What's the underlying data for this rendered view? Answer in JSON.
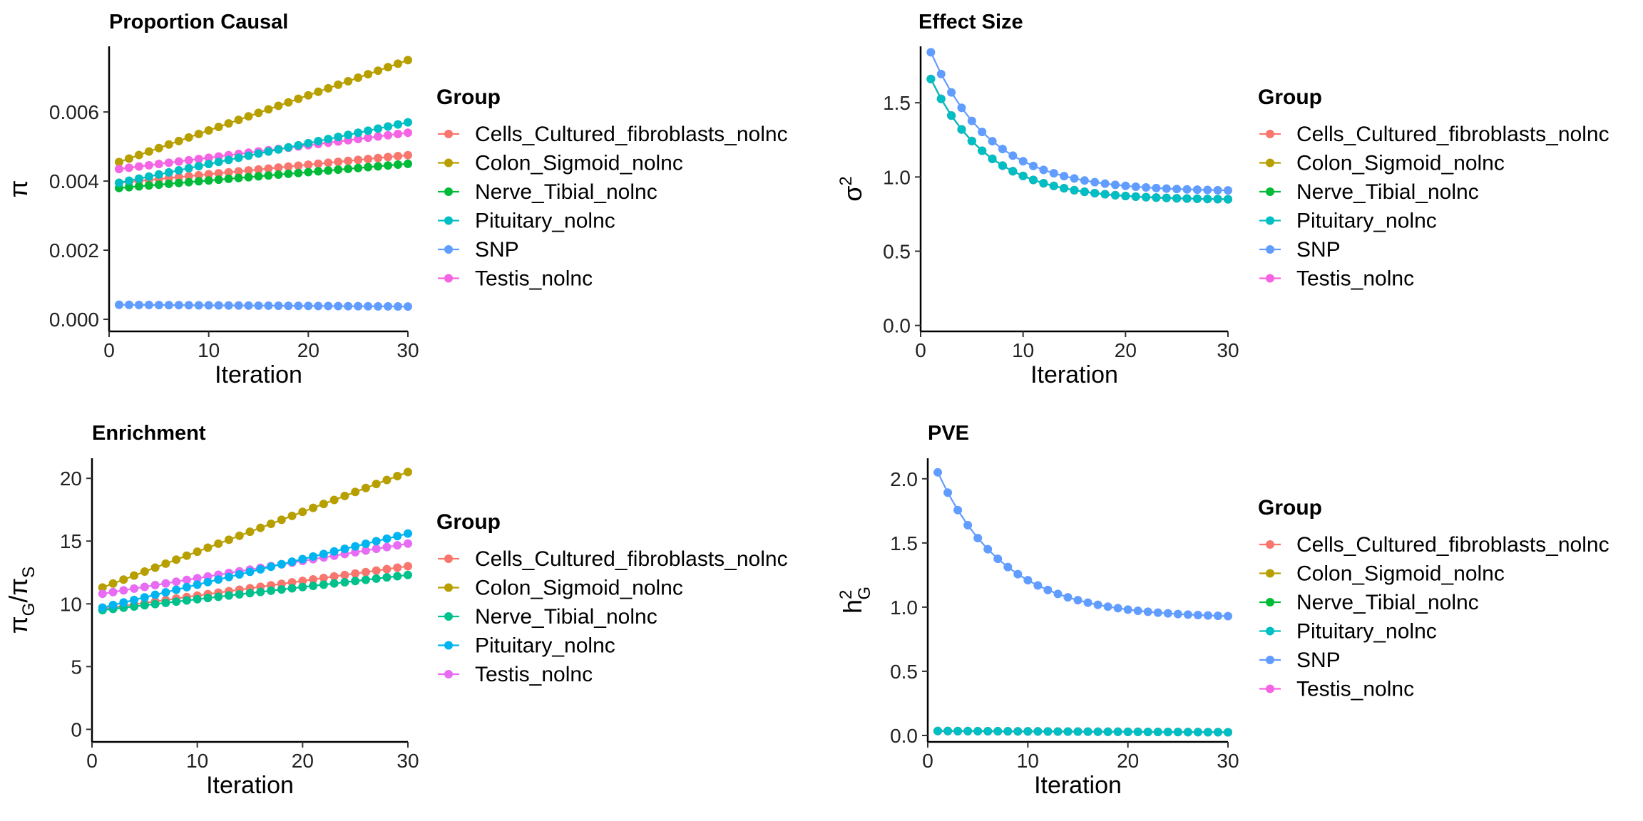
{
  "colors": {
    "Cells_Cultured_fibroblasts_nolnc": "#F8766D",
    "Colon_Sigmoid_nolnc": "#B79F00",
    "Nerve_Tibial_nolnc": "#00BA38",
    "Pituitary_nolnc": "#00BFC4",
    "SNP": "#619CFF",
    "Testis_nolnc": "#F564E3",
    "enrich_Nerve_Tibial_nolnc": "#00C08B",
    "enrich_Pituitary_nolnc": "#00B4F0",
    "enrich_Testis_nolnc": "#E76BF3"
  },
  "chart_data": [
    {
      "type": "line",
      "title": "Proportion Causal",
      "xlabel": "Iteration",
      "ylabel_main": "π",
      "ylabel_sub": "",
      "ylabel_sup": "",
      "xlim": [
        0,
        30
      ],
      "ylim": [
        -0.00035,
        0.0079
      ],
      "xticks": [
        0,
        10,
        20,
        30
      ],
      "xtick_labels": [
        "0",
        "10",
        "20",
        "30"
      ],
      "yticks": [
        0,
        0.002,
        0.004,
        0.006
      ],
      "ytick_labels": [
        "0.000",
        "0.002",
        "0.004",
        "0.006"
      ],
      "grid": false,
      "legend": {
        "title": "Group",
        "position": "right",
        "entries": [
          "Cells_Cultured_fibroblasts_nolnc",
          "Colon_Sigmoid_nolnc",
          "Nerve_Tibial_nolnc",
          "Pituitary_nolnc",
          "SNP",
          "Testis_nolnc"
        ]
      },
      "series": [
        {
          "name": "Cells_Cultured_fibroblasts_nolnc",
          "color": "#F8766D",
          "start": 0.00395,
          "end": 0.00475,
          "curve": "linear"
        },
        {
          "name": "Colon_Sigmoid_nolnc",
          "color": "#B79F00",
          "start": 0.00455,
          "end": 0.0075,
          "curve": "linear"
        },
        {
          "name": "Nerve_Tibial_nolnc",
          "color": "#00BA38",
          "start": 0.0038,
          "end": 0.0045,
          "curve": "linear"
        },
        {
          "name": "Testis_nolnc",
          "color": "#F564E3",
          "start": 0.00435,
          "end": 0.0054,
          "curve": "linear"
        },
        {
          "name": "Pituitary_nolnc",
          "color": "#00BFC4",
          "start": 0.00395,
          "end": 0.0057,
          "curve": "linear"
        },
        {
          "name": "SNP",
          "color": "#619CFF",
          "start": 0.00042,
          "end": 0.00037,
          "curve": "linear"
        }
      ]
    },
    {
      "type": "line",
      "title": "Effect Size",
      "xlabel": "Iteration",
      "ylabel_main": "σ",
      "ylabel_sub": "",
      "ylabel_sup": "2",
      "xlim": [
        0,
        30
      ],
      "ylim": [
        -0.04,
        1.88
      ],
      "xticks": [
        0,
        10,
        20,
        30
      ],
      "xtick_labels": [
        "0",
        "10",
        "20",
        "30"
      ],
      "yticks": [
        0,
        0.5,
        1.0,
        1.5
      ],
      "ytick_labels": [
        "0.0",
        "0.5",
        "1.0",
        "1.5"
      ],
      "grid": false,
      "legend": {
        "title": "Group",
        "position": "right",
        "entries": [
          "Cells_Cultured_fibroblasts_nolnc",
          "Colon_Sigmoid_nolnc",
          "Nerve_Tibial_nolnc",
          "Pituitary_nolnc",
          "SNP",
          "Testis_nolnc"
        ]
      },
      "series": [
        {
          "name": "Cells_Cultured_fibroblasts_nolnc",
          "color": "#F8766D",
          "start": 1.66,
          "end": 0.85,
          "curve": "decay",
          "k": 0.18
        },
        {
          "name": "Colon_Sigmoid_nolnc",
          "color": "#B79F00",
          "start": 1.66,
          "end": 0.85,
          "curve": "decay",
          "k": 0.18
        },
        {
          "name": "Nerve_Tibial_nolnc",
          "color": "#00BA38",
          "start": 1.66,
          "end": 0.85,
          "curve": "decay",
          "k": 0.18
        },
        {
          "name": "Testis_nolnc",
          "color": "#F564E3",
          "start": 1.66,
          "end": 0.85,
          "curve": "decay",
          "k": 0.18
        },
        {
          "name": "Pituitary_nolnc",
          "color": "#00BFC4",
          "start": 1.66,
          "end": 0.85,
          "curve": "decay",
          "k": 0.18
        },
        {
          "name": "SNP",
          "color": "#619CFF",
          "start": 1.84,
          "end": 0.91,
          "curve": "decay",
          "k": 0.17
        }
      ]
    },
    {
      "type": "line",
      "title": "Enrichment",
      "xlabel": "Iteration",
      "ylabel_main": "π",
      "ylabel_sub": "G",
      "ylabel_sup": "",
      "ylabel_den": "π",
      "ylabel_den_sub": "S",
      "xlim": [
        0,
        30
      ],
      "ylim": [
        -1.0,
        21.6
      ],
      "xticks": [
        0,
        10,
        20,
        30
      ],
      "xtick_labels": [
        "0",
        "10",
        "20",
        "30"
      ],
      "yticks": [
        0,
        5,
        10,
        15,
        20
      ],
      "ytick_labels": [
        "0",
        "5",
        "10",
        "15",
        "20"
      ],
      "grid": false,
      "legend": {
        "title": "Group",
        "position": "right",
        "entries": [
          "Cells_Cultured_fibroblasts_nolnc",
          "Colon_Sigmoid_nolnc",
          "Nerve_Tibial_nolnc",
          "Pituitary_nolnc",
          "Testis_nolnc"
        ]
      },
      "series": [
        {
          "name": "Cells_Cultured_fibroblasts_nolnc",
          "color": "#F8766D",
          "start": 9.6,
          "end": 13.0,
          "curve": "linear"
        },
        {
          "name": "Colon_Sigmoid_nolnc",
          "color": "#B79F00",
          "start": 11.3,
          "end": 20.5,
          "curve": "linear"
        },
        {
          "name": "Nerve_Tibial_nolnc",
          "color": "#00C08B",
          "start": 9.5,
          "end": 12.3,
          "curve": "linear"
        },
        {
          "name": "Testis_nolnc",
          "color": "#E76BF3",
          "start": 10.8,
          "end": 14.8,
          "curve": "linear"
        },
        {
          "name": "Pituitary_nolnc",
          "color": "#00B4F0",
          "start": 9.7,
          "end": 15.6,
          "curve": "linear"
        }
      ]
    },
    {
      "type": "line",
      "title": "PVE",
      "xlabel": "Iteration",
      "ylabel_main": "h",
      "ylabel_sub": "G",
      "ylabel_sup": "2",
      "xlim": [
        0,
        30
      ],
      "ylim": [
        -0.05,
        2.16
      ],
      "xticks": [
        0,
        10,
        20,
        30
      ],
      "xtick_labels": [
        "0",
        "10",
        "20",
        "30"
      ],
      "yticks": [
        0,
        0.5,
        1.0,
        1.5,
        2.0
      ],
      "ytick_labels": [
        "0.0",
        "0.5",
        "1.0",
        "1.5",
        "2.0"
      ],
      "grid": false,
      "legend": {
        "title": "Group",
        "position": "right",
        "entries": [
          "Cells_Cultured_fibroblasts_nolnc",
          "Colon_Sigmoid_nolnc",
          "Nerve_Tibial_nolnc",
          "Pituitary_nolnc",
          "SNP",
          "Testis_nolnc"
        ]
      },
      "series": [
        {
          "name": "Cells_Cultured_fibroblasts_nolnc",
          "color": "#F8766D",
          "start": 0.035,
          "end": 0.025,
          "curve": "linear"
        },
        {
          "name": "Colon_Sigmoid_nolnc",
          "color": "#B79F00",
          "start": 0.035,
          "end": 0.025,
          "curve": "linear"
        },
        {
          "name": "Nerve_Tibial_nolnc",
          "color": "#00BA38",
          "start": 0.035,
          "end": 0.025,
          "curve": "linear"
        },
        {
          "name": "Testis_nolnc",
          "color": "#F564E3",
          "start": 0.035,
          "end": 0.025,
          "curve": "linear"
        },
        {
          "name": "Pituitary_nolnc",
          "color": "#00BFC4",
          "start": 0.035,
          "end": 0.025,
          "curve": "linear"
        },
        {
          "name": "SNP",
          "color": "#619CFF",
          "start": 2.05,
          "end": 0.93,
          "curve": "decay",
          "k": 0.15
        }
      ]
    }
  ]
}
